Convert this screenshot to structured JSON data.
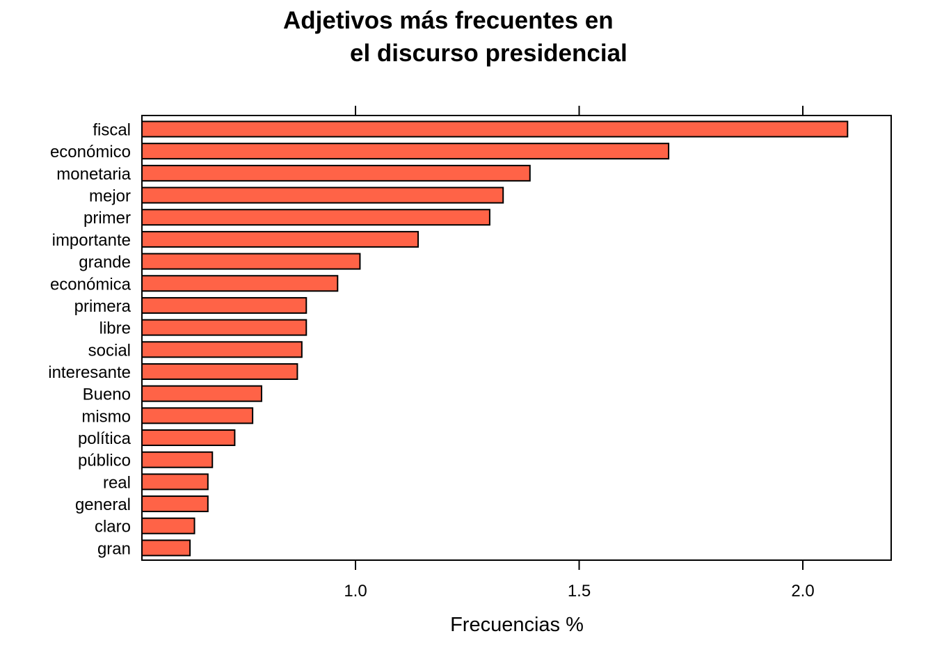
{
  "chart_data": {
    "type": "bar",
    "orientation": "horizontal",
    "title_lines": [
      "Adjetivos más frecuentes en",
      "el discurso presidencial"
    ],
    "xlabel": "Frecuencias %",
    "ylabel": "",
    "xlim": [
      0.525,
      2.2
    ],
    "xticks": [
      1.0,
      1.5,
      2.0
    ],
    "xtick_labels": [
      "1.0",
      "1.5",
      "2.0"
    ],
    "tick_position": "top and bottom",
    "grid": false,
    "bar_color": "#FF6347",
    "bar_edge_color": "#000000",
    "categories": [
      "fiscal",
      "económico",
      "monetaria",
      "mejor",
      "primer",
      "importante",
      "grande",
      "económica",
      "primera",
      "libre",
      "social",
      "interesante",
      "Bueno",
      "mismo",
      "política",
      "público",
      "real",
      "general",
      "claro",
      "gran"
    ],
    "values": [
      2.1,
      1.7,
      1.39,
      1.33,
      1.3,
      1.14,
      1.01,
      0.96,
      0.89,
      0.89,
      0.88,
      0.87,
      0.79,
      0.77,
      0.73,
      0.68,
      0.67,
      0.67,
      0.64,
      0.63
    ]
  }
}
